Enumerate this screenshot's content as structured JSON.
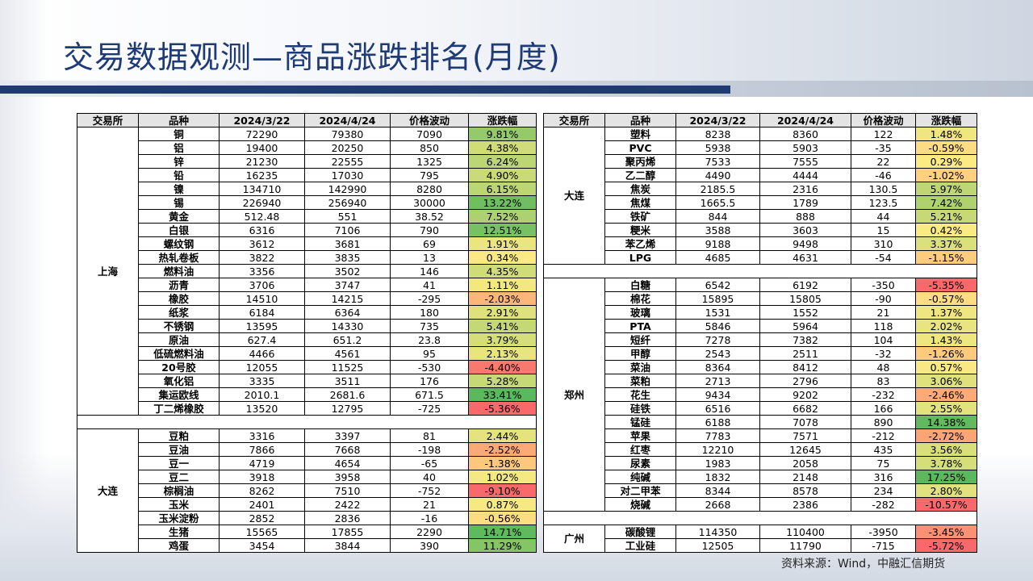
{
  "title": "交易数据观测—商品涨跌排名(月度)",
  "source": "资料来源：Wind，中融汇信期货",
  "headers": [
    "交易所",
    "品种",
    "2024/3/22",
    "2024/4/24",
    "价格波动",
    "涨跌幅"
  ],
  "colors": {
    "title": "#1f3b76",
    "max_up": "#5cb85c",
    "neutral": "#ffeb84",
    "max_down": "#f8696b"
  },
  "left_groups": [
    {
      "exchange": "上海",
      "rows": [
        [
          "铜",
          "72290",
          "79380",
          "7090",
          "9.81%"
        ],
        [
          "铝",
          "19400",
          "20250",
          "850",
          "4.38%"
        ],
        [
          "锌",
          "21230",
          "22555",
          "1325",
          "6.24%"
        ],
        [
          "铅",
          "16235",
          "17030",
          "795",
          "4.90%"
        ],
        [
          "镍",
          "134710",
          "142990",
          "8280",
          "6.15%"
        ],
        [
          "锡",
          "226940",
          "256940",
          "30000",
          "13.22%"
        ],
        [
          "黄金",
          "512.48",
          "551",
          "38.52",
          "7.52%"
        ],
        [
          "白银",
          "6316",
          "7106",
          "790",
          "12.51%"
        ],
        [
          "螺纹钢",
          "3612",
          "3681",
          "69",
          "1.91%"
        ],
        [
          "热轧卷板",
          "3822",
          "3835",
          "13",
          "0.34%"
        ],
        [
          "燃料油",
          "3356",
          "3502",
          "146",
          "4.35%"
        ],
        [
          "沥青",
          "3706",
          "3747",
          "41",
          "1.11%"
        ],
        [
          "橡胶",
          "14510",
          "14215",
          "-295",
          "-2.03%"
        ],
        [
          "纸浆",
          "6184",
          "6364",
          "180",
          "2.91%"
        ],
        [
          "不锈钢",
          "13595",
          "14330",
          "735",
          "5.41%"
        ],
        [
          "原油",
          "627.4",
          "651.2",
          "23.8",
          "3.79%"
        ],
        [
          "低硫燃料油",
          "4466",
          "4561",
          "95",
          "2.13%"
        ],
        [
          "20号胶",
          "12055",
          "11525",
          "-530",
          "-4.40%"
        ],
        [
          "氧化铝",
          "3335",
          "3511",
          "176",
          "5.28%"
        ],
        [
          "集运欧线",
          "2010.1",
          "2681.6",
          "671.5",
          "33.41%"
        ],
        [
          "丁二烯橡胶",
          "13520",
          "12795",
          "-725",
          "-5.36%"
        ]
      ]
    },
    {
      "exchange": "大连",
      "rows": [
        [
          "豆粕",
          "3316",
          "3397",
          "81",
          "2.44%"
        ],
        [
          "豆油",
          "7866",
          "7668",
          "-198",
          "-2.52%"
        ],
        [
          "豆一",
          "4719",
          "4654",
          "-65",
          "-1.38%"
        ],
        [
          "豆二",
          "3918",
          "3958",
          "40",
          "1.02%"
        ],
        [
          "棕榈油",
          "8262",
          "7510",
          "-752",
          "-9.10%"
        ],
        [
          "玉米",
          "2401",
          "2422",
          "21",
          "0.87%"
        ],
        [
          "玉米淀粉",
          "2852",
          "2836",
          "-16",
          "-0.56%"
        ],
        [
          "生猪",
          "15565",
          "17855",
          "2290",
          "14.71%"
        ],
        [
          "鸡蛋",
          "3454",
          "3844",
          "390",
          "11.29%"
        ]
      ]
    }
  ],
  "right_groups": [
    {
      "exchange": "大连",
      "rows": [
        [
          "塑料",
          "8238",
          "8360",
          "122",
          "1.48%"
        ],
        [
          "PVC",
          "5938",
          "5903",
          "-35",
          "-0.59%"
        ],
        [
          "聚丙烯",
          "7533",
          "7555",
          "22",
          "0.29%"
        ],
        [
          "乙二醇",
          "4490",
          "4444",
          "-46",
          "-1.02%"
        ],
        [
          "焦炭",
          "2185.5",
          "2316",
          "130.5",
          "5.97%"
        ],
        [
          "焦煤",
          "1665.5",
          "1789",
          "123.5",
          "7.42%"
        ],
        [
          "铁矿",
          "844",
          "888",
          "44",
          "5.21%"
        ],
        [
          "粳米",
          "3588",
          "3603",
          "15",
          "0.42%"
        ],
        [
          "苯乙烯",
          "9188",
          "9498",
          "310",
          "3.37%"
        ],
        [
          "LPG",
          "4685",
          "4631",
          "-54",
          "-1.15%"
        ]
      ]
    },
    {
      "exchange": "郑州",
      "rows": [
        [
          "白糖",
          "6542",
          "6192",
          "-350",
          "-5.35%"
        ],
        [
          "棉花",
          "15895",
          "15805",
          "-90",
          "-0.57%"
        ],
        [
          "玻璃",
          "1531",
          "1552",
          "21",
          "1.37%"
        ],
        [
          "PTA",
          "5846",
          "5964",
          "118",
          "2.02%"
        ],
        [
          "短纤",
          "7278",
          "7382",
          "104",
          "1.43%"
        ],
        [
          "甲醇",
          "2543",
          "2511",
          "-32",
          "-1.26%"
        ],
        [
          "菜油",
          "8364",
          "8412",
          "48",
          "0.57%"
        ],
        [
          "菜粕",
          "2713",
          "2796",
          "83",
          "3.06%"
        ],
        [
          "花生",
          "9434",
          "9202",
          "-232",
          "-2.46%"
        ],
        [
          "硅铁",
          "6516",
          "6682",
          "166",
          "2.55%"
        ],
        [
          "锰硅",
          "6188",
          "7078",
          "890",
          "14.38%"
        ],
        [
          "苹果",
          "7783",
          "7571",
          "-212",
          "-2.72%"
        ],
        [
          "红枣",
          "12210",
          "12645",
          "435",
          "3.56%"
        ],
        [
          "尿素",
          "1983",
          "2058",
          "75",
          "3.78%"
        ],
        [
          "纯碱",
          "1832",
          "2148",
          "316",
          "17.25%"
        ],
        [
          "对二甲苯",
          "8344",
          "8578",
          "234",
          "2.80%"
        ],
        [
          "烧碱",
          "2668",
          "2386",
          "-282",
          "-10.57%"
        ]
      ]
    },
    {
      "exchange": "广州",
      "rows": [
        [
          "碳酸锂",
          "114350",
          "110400",
          "-3950",
          "-3.45%"
        ],
        [
          "工业硅",
          "12505",
          "11790",
          "-715",
          "-5.72%"
        ]
      ]
    }
  ]
}
